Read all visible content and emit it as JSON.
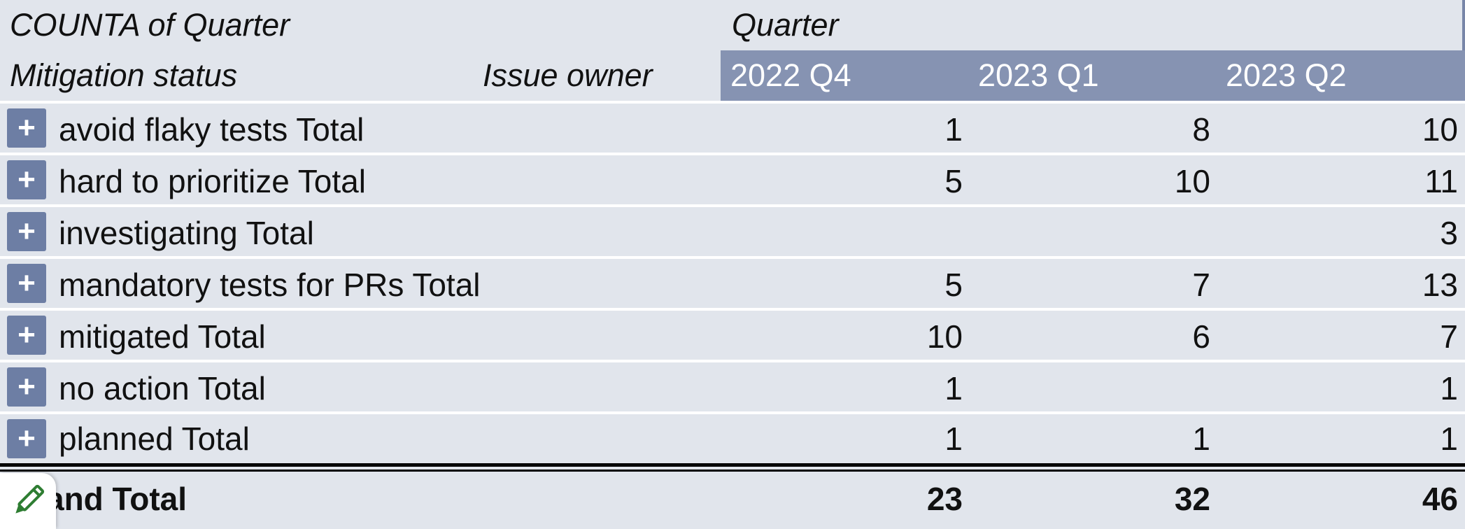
{
  "header": {
    "measure_label": "COUNTA of Quarter",
    "column_field_label": "Quarter",
    "row_field_label": "Mitigation status",
    "row_field_label_2": "Issue owner",
    "columns": [
      "2022 Q4",
      "2023 Q1",
      "2023 Q2"
    ]
  },
  "rows": [
    {
      "label": "avoid flaky tests Total",
      "values": [
        "1",
        "8",
        "10"
      ]
    },
    {
      "label": "hard to prioritize Total",
      "values": [
        "5",
        "10",
        "11"
      ]
    },
    {
      "label": "investigating Total",
      "values": [
        "",
        "",
        "3"
      ]
    },
    {
      "label": "mandatory tests for PRs Total",
      "values": [
        "5",
        "7",
        "13"
      ]
    },
    {
      "label": "mitigated Total",
      "values": [
        "10",
        "6",
        "7"
      ]
    },
    {
      "label": "no action Total",
      "values": [
        "1",
        "",
        "1"
      ]
    },
    {
      "label": "planned Total",
      "values": [
        "1",
        "1",
        "1"
      ]
    }
  ],
  "grand_total": {
    "label": "and Total",
    "values": [
      "23",
      "32",
      "46"
    ]
  },
  "icons": {
    "expand": "plus-icon",
    "edit": "pencil-icon"
  },
  "colors": {
    "background": "#e1e5ec",
    "column_header": "#8693b2",
    "expand_button": "#6d7ea4",
    "edit_icon": "#2e7d32"
  }
}
